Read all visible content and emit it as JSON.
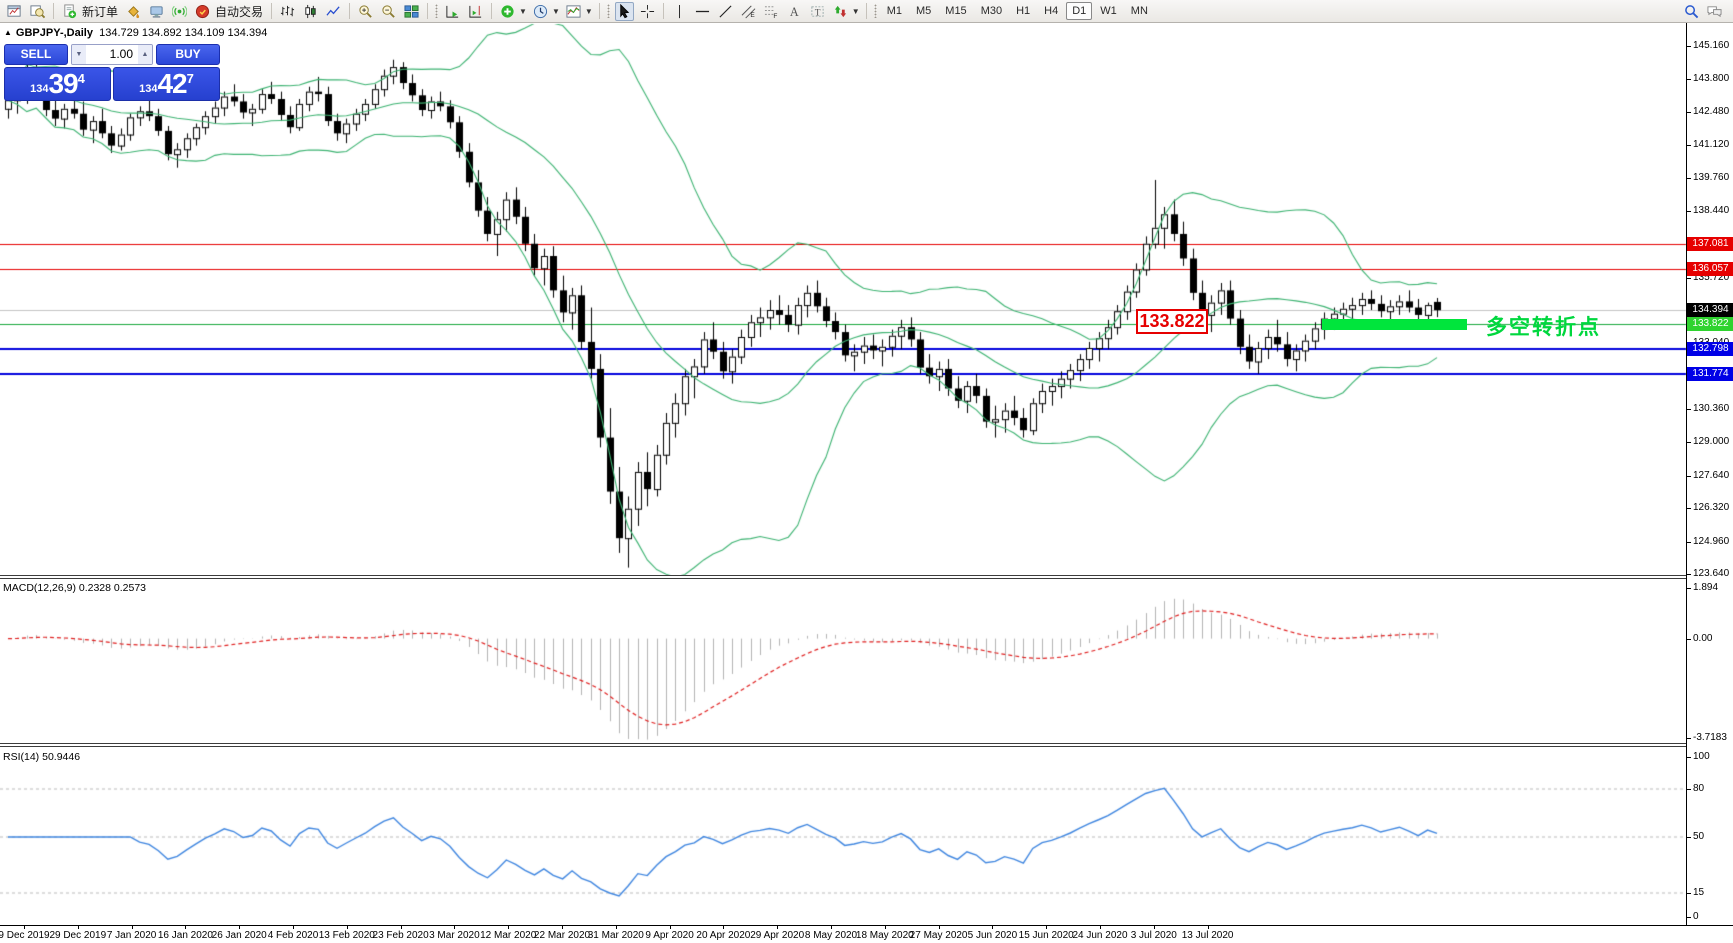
{
  "toolbar": {
    "new_order_label": "新订单",
    "autotrading_label": "自动交易",
    "timeframes": [
      "M1",
      "M5",
      "M15",
      "M30",
      "H1",
      "H4",
      "D1",
      "W1",
      "MN"
    ],
    "active_timeframe": "D1",
    "icon_names": [
      "new-chart",
      "profiles",
      "new-order",
      "styler",
      "experts",
      "signals",
      "autotrading",
      "bar-chart",
      "candlestick-chart",
      "line-chart",
      "zoom-in",
      "zoom-out",
      "tile-windows",
      "auto-scroll",
      "chart-shift",
      "indicators",
      "periods",
      "templates",
      "cursor",
      "crosshair",
      "vertical-line",
      "horizontal-line",
      "trendline",
      "equidistant-channel",
      "fibonacci",
      "text",
      "text-label",
      "arrows",
      "search",
      "chat"
    ]
  },
  "chart": {
    "symbol_period": "GBPJPY-,Daily",
    "ohlc": "134.729 134.892 134.109 134.394"
  },
  "one_click": {
    "sell_label": "SELL",
    "buy_label": "BUY",
    "volume": "1.00",
    "sell_prefix": "134",
    "sell_big": "39",
    "sell_sup": "4",
    "buy_prefix": "134",
    "buy_big": "42",
    "buy_sup": "7"
  },
  "annotations": {
    "price_flag": "133.822",
    "turning_point": "多空转折点",
    "flag_color": "#e60000",
    "turning_point_color": "#00d73e",
    "zone_bar_color": "#00e53c"
  },
  "macd_panel": {
    "name": "MACD(12,26,9)",
    "values": "0.2328 0.2573"
  },
  "rsi_panel": {
    "name": "RSI(14)",
    "value": "50.9446"
  },
  "chart_data": {
    "type": "candlestick",
    "symbol": "GBPJPY-",
    "period": "Daily",
    "price_axis": {
      "max": 145.16,
      "min": 123.64,
      "plain_ticks": [
        {
          "t": "145.160",
          "v": 145.16
        },
        {
          "t": "143.800",
          "v": 143.8
        },
        {
          "t": "142.480",
          "v": 142.48
        },
        {
          "t": "141.120",
          "v": 141.12
        },
        {
          "t": "139.760",
          "v": 139.76
        },
        {
          "t": "138.440",
          "v": 138.44
        },
        {
          "t": "135.720",
          "v": 135.72
        },
        {
          "t": "133.040",
          "v": 133.04
        },
        {
          "t": "130.360",
          "v": 130.36
        },
        {
          "t": "129.000",
          "v": 129.0
        },
        {
          "t": "127.640",
          "v": 127.64
        },
        {
          "t": "126.320",
          "v": 126.32
        },
        {
          "t": "124.960",
          "v": 124.96
        },
        {
          "t": "123.640",
          "v": 123.64
        }
      ],
      "tagged_labels": [
        {
          "t": "137.081",
          "v": 137.081,
          "bg": "#e60000"
        },
        {
          "t": "136.057",
          "v": 136.057,
          "bg": "#e60000"
        },
        {
          "t": "134.394",
          "v": 134.394,
          "bg": "#000000"
        },
        {
          "t": "133.822",
          "v": 133.822,
          "bg": "#2fd32f"
        },
        {
          "t": "132.798",
          "v": 132.798,
          "bg": "#0000e6"
        },
        {
          "t": "131.774",
          "v": 131.774,
          "bg": "#0000e6"
        }
      ]
    },
    "levels": [
      {
        "price": 137.081,
        "color": "#e60000",
        "lw": 1
      },
      {
        "price": 136.057,
        "color": "#e60000",
        "lw": 1
      },
      {
        "price": 134.394,
        "color": "#c4c4c4",
        "lw": 1
      },
      {
        "price": 133.822,
        "color": "#18a83c",
        "lw": 1
      },
      {
        "price": 132.798,
        "color": "#0000dd",
        "lw": 2
      },
      {
        "price": 131.774,
        "color": "#0000dd",
        "lw": 2
      }
    ],
    "macd_axis": {
      "labels": [
        {
          "t": "1.894",
          "v": 1.894
        },
        {
          "t": "0.00",
          "v": 0
        },
        {
          "t": "-3.7183",
          "v": -3.7183
        }
      ],
      "max": 1.894,
      "min": -3.7183
    },
    "rsi_axis": {
      "labels": [
        {
          "t": "100",
          "v": 100
        },
        {
          "t": "80",
          "v": 80
        },
        {
          "t": "50",
          "v": 50
        },
        {
          "t": "15",
          "v": 15
        },
        {
          "t": "0",
          "v": 0
        }
      ],
      "levels": [
        80,
        50,
        15
      ]
    },
    "indicators": {
      "bollinger": {
        "period": 20,
        "deviation": 2,
        "color": "#3CB371"
      },
      "macd": {
        "fast": 12,
        "slow": 26,
        "signal": 9,
        "hist_color": "#b4b4b4",
        "signal_color": "#e02020"
      },
      "rsi": {
        "period": 14,
        "color": "#3f86e0"
      }
    },
    "dates": [
      "9 Dec 2019",
      "29 Dec 2019",
      "7 Jan 2020",
      "16 Jan 2020",
      "26 Jan 2020",
      "4 Feb 2020",
      "13 Feb 2020",
      "23 Feb 2020",
      "3 Mar 2020",
      "12 Mar 2020",
      "22 Mar 2020",
      "31 Mar 2020",
      "9 Apr 2020",
      "20 Apr 2020",
      "29 Apr 2020",
      "8 May 2020",
      "18 May 2020",
      "27 May 2020",
      "5 Jun 2020",
      "15 Jun 2020",
      "24 Jun 2020",
      "3 Jul 2020",
      "13 Jul 2020"
    ],
    "candles": [
      [
        142.6,
        143.1,
        142.2,
        142.95
      ],
      [
        142.95,
        143.6,
        142.4,
        143.3
      ],
      [
        143.3,
        144.4,
        142.8,
        144.1
      ],
      [
        144.1,
        144.5,
        143.2,
        143.5
      ],
      [
        143.5,
        143.8,
        142.3,
        142.55
      ],
      [
        142.55,
        143.0,
        141.9,
        142.2
      ],
      [
        142.2,
        142.8,
        141.8,
        142.6
      ],
      [
        142.6,
        143.1,
        142.2,
        142.4
      ],
      [
        142.4,
        142.9,
        141.5,
        141.75
      ],
      [
        141.75,
        142.3,
        141.2,
        142.1
      ],
      [
        142.1,
        142.6,
        141.4,
        141.6
      ],
      [
        141.6,
        141.9,
        140.8,
        141.1
      ],
      [
        141.1,
        141.8,
        140.9,
        141.55
      ],
      [
        141.55,
        142.4,
        141.3,
        142.25
      ],
      [
        142.25,
        142.7,
        141.9,
        142.5
      ],
      [
        142.5,
        143.0,
        142.1,
        142.3
      ],
      [
        142.3,
        142.6,
        141.5,
        141.7
      ],
      [
        141.7,
        141.9,
        140.5,
        140.75
      ],
      [
        140.75,
        141.2,
        140.2,
        140.95
      ],
      [
        140.95,
        141.6,
        140.6,
        141.4
      ],
      [
        141.4,
        142.0,
        141.1,
        141.85
      ],
      [
        141.85,
        142.5,
        141.55,
        142.3
      ],
      [
        142.3,
        142.9,
        142.0,
        142.65
      ],
      [
        142.65,
        143.3,
        142.3,
        143.1
      ],
      [
        143.1,
        143.6,
        142.7,
        142.9
      ],
      [
        142.9,
        143.2,
        142.2,
        142.45
      ],
      [
        142.45,
        142.8,
        141.9,
        142.6
      ],
      [
        142.6,
        143.4,
        142.4,
        143.2
      ],
      [
        143.2,
        143.7,
        142.8,
        143.0
      ],
      [
        143.0,
        143.3,
        142.1,
        142.35
      ],
      [
        142.35,
        142.7,
        141.6,
        141.85
      ],
      [
        141.85,
        143.0,
        141.7,
        142.8
      ],
      [
        142.8,
        143.5,
        142.5,
        143.3
      ],
      [
        143.3,
        143.9,
        142.9,
        143.2
      ],
      [
        143.2,
        143.5,
        141.9,
        142.1
      ],
      [
        142.1,
        142.4,
        141.3,
        141.6
      ],
      [
        141.6,
        142.2,
        141.2,
        142.0
      ],
      [
        142.0,
        142.6,
        141.7,
        142.4
      ],
      [
        142.4,
        143.0,
        142.1,
        142.8
      ],
      [
        142.8,
        143.6,
        142.6,
        143.4
      ],
      [
        143.4,
        144.2,
        143.1,
        143.95
      ],
      [
        143.95,
        144.6,
        143.6,
        144.3
      ],
      [
        144.3,
        144.5,
        143.4,
        143.65
      ],
      [
        143.65,
        144.0,
        142.9,
        143.15
      ],
      [
        143.15,
        143.4,
        142.3,
        142.55
      ],
      [
        142.55,
        143.1,
        142.2,
        142.9
      ],
      [
        142.9,
        143.3,
        142.5,
        142.7
      ],
      [
        142.7,
        142.95,
        141.8,
        142.05
      ],
      [
        142.05,
        142.3,
        140.6,
        140.85
      ],
      [
        140.85,
        141.2,
        139.4,
        139.6
      ],
      [
        139.6,
        140.1,
        138.2,
        138.45
      ],
      [
        138.45,
        139.0,
        137.2,
        137.5
      ],
      [
        137.5,
        138.4,
        136.6,
        138.1
      ],
      [
        138.1,
        139.2,
        137.6,
        138.9
      ],
      [
        138.9,
        139.4,
        137.9,
        138.2
      ],
      [
        138.2,
        138.6,
        136.8,
        137.1
      ],
      [
        137.1,
        137.5,
        135.8,
        136.1
      ],
      [
        136.1,
        136.9,
        135.4,
        136.6
      ],
      [
        136.6,
        137.0,
        134.9,
        135.2
      ],
      [
        135.2,
        135.8,
        133.9,
        134.3
      ],
      [
        134.3,
        135.3,
        133.6,
        135.0
      ],
      [
        135.0,
        135.4,
        132.8,
        133.1
      ],
      [
        133.1,
        134.5,
        131.6,
        132.0
      ],
      [
        132.0,
        132.6,
        128.8,
        129.2
      ],
      [
        129.2,
        130.4,
        126.5,
        127.0
      ],
      [
        127.0,
        128.0,
        124.5,
        125.1
      ],
      [
        125.1,
        126.8,
        123.9,
        126.3
      ],
      [
        126.3,
        128.2,
        125.6,
        127.8
      ],
      [
        127.8,
        128.6,
        126.4,
        127.1
      ],
      [
        127.1,
        128.9,
        126.8,
        128.5
      ],
      [
        128.5,
        130.2,
        128.1,
        129.8
      ],
      [
        129.8,
        131.0,
        129.2,
        130.6
      ],
      [
        130.6,
        132.0,
        130.1,
        131.7
      ],
      [
        131.7,
        132.4,
        130.8,
        132.1
      ],
      [
        132.1,
        133.5,
        131.8,
        133.2
      ],
      [
        133.2,
        133.9,
        132.4,
        132.7
      ],
      [
        132.7,
        133.1,
        131.6,
        131.9
      ],
      [
        131.9,
        132.8,
        131.4,
        132.5
      ],
      [
        132.5,
        133.6,
        132.2,
        133.3
      ],
      [
        133.3,
        134.2,
        132.9,
        133.9
      ],
      [
        133.9,
        134.5,
        133.3,
        134.1
      ],
      [
        134.1,
        134.8,
        133.6,
        134.4
      ],
      [
        134.4,
        135.0,
        133.8,
        134.2
      ],
      [
        134.2,
        134.6,
        133.5,
        133.8
      ],
      [
        133.8,
        134.9,
        133.4,
        134.6
      ],
      [
        134.6,
        135.4,
        134.1,
        135.1
      ],
      [
        135.1,
        135.6,
        134.3,
        134.55
      ],
      [
        134.55,
        134.9,
        133.7,
        133.95
      ],
      [
        133.95,
        134.3,
        133.2,
        133.5
      ],
      [
        133.5,
        133.8,
        132.3,
        132.55
      ],
      [
        132.55,
        133.0,
        131.9,
        132.7
      ],
      [
        132.7,
        133.3,
        132.2,
        132.95
      ],
      [
        132.95,
        133.4,
        132.4,
        132.75
      ],
      [
        132.75,
        133.2,
        132.1,
        132.9
      ],
      [
        132.9,
        133.6,
        132.5,
        133.35
      ],
      [
        133.35,
        134.0,
        132.8,
        133.7
      ],
      [
        133.7,
        134.1,
        132.9,
        133.2
      ],
      [
        133.2,
        133.5,
        131.8,
        132.05
      ],
      [
        132.05,
        132.6,
        131.4,
        131.7
      ],
      [
        131.7,
        132.3,
        131.1,
        132.0
      ],
      [
        132.0,
        132.4,
        130.9,
        131.2
      ],
      [
        131.2,
        131.7,
        130.4,
        130.7
      ],
      [
        130.7,
        131.5,
        130.2,
        131.3
      ],
      [
        131.3,
        131.8,
        130.6,
        130.9
      ],
      [
        130.9,
        131.2,
        129.6,
        129.85
      ],
      [
        129.85,
        130.5,
        129.2,
        129.95
      ],
      [
        129.95,
        130.6,
        129.4,
        130.3
      ],
      [
        130.3,
        130.9,
        129.7,
        130.0
      ],
      [
        130.0,
        130.4,
        129.2,
        129.5
      ],
      [
        129.5,
        130.8,
        129.3,
        130.6
      ],
      [
        130.6,
        131.4,
        130.2,
        131.1
      ],
      [
        131.1,
        131.6,
        130.5,
        131.3
      ],
      [
        131.3,
        131.9,
        130.8,
        131.6
      ],
      [
        131.6,
        132.2,
        131.2,
        131.95
      ],
      [
        131.95,
        132.6,
        131.5,
        132.4
      ],
      [
        132.4,
        133.1,
        132.0,
        132.85
      ],
      [
        132.85,
        133.5,
        132.3,
        133.25
      ],
      [
        133.25,
        134.0,
        132.8,
        133.7
      ],
      [
        133.7,
        134.6,
        133.4,
        134.35
      ],
      [
        134.35,
        135.4,
        134.0,
        135.15
      ],
      [
        135.15,
        136.3,
        134.9,
        136.05
      ],
      [
        136.05,
        137.4,
        135.8,
        137.1
      ],
      [
        137.1,
        139.7,
        136.9,
        137.75
      ],
      [
        137.75,
        138.6,
        136.9,
        138.3
      ],
      [
        138.3,
        138.9,
        137.2,
        137.5
      ],
      [
        137.5,
        138.0,
        136.2,
        136.5
      ],
      [
        136.5,
        136.9,
        134.8,
        135.1
      ],
      [
        135.1,
        135.6,
        133.9,
        134.2
      ],
      [
        134.2,
        135.0,
        133.5,
        134.7
      ],
      [
        134.7,
        135.5,
        134.2,
        135.2
      ],
      [
        135.2,
        135.6,
        133.8,
        134.05
      ],
      [
        134.05,
        134.4,
        132.6,
        132.9
      ],
      [
        132.9,
        133.4,
        132.0,
        132.3
      ],
      [
        132.3,
        133.1,
        131.8,
        132.85
      ],
      [
        132.85,
        133.6,
        132.4,
        133.3
      ],
      [
        133.3,
        134.0,
        132.7,
        133.0
      ],
      [
        133.0,
        133.5,
        132.1,
        132.4
      ],
      [
        132.4,
        133.0,
        131.9,
        132.75
      ],
      [
        132.75,
        133.4,
        132.3,
        133.15
      ],
      [
        133.15,
        133.9,
        132.8,
        133.65
      ],
      [
        133.65,
        134.3,
        133.2,
        134.05
      ],
      [
        134.05,
        134.5,
        133.6,
        134.25
      ],
      [
        134.25,
        134.7,
        133.9,
        134.45
      ],
      [
        134.45,
        134.9,
        134.0,
        134.6
      ],
      [
        134.6,
        135.1,
        134.2,
        134.85
      ],
      [
        134.85,
        135.2,
        134.4,
        134.65
      ],
      [
        134.65,
        135.0,
        134.1,
        134.35
      ],
      [
        134.35,
        134.8,
        133.9,
        134.55
      ],
      [
        134.55,
        135.0,
        134.2,
        134.75
      ],
      [
        134.75,
        135.2,
        134.3,
        134.5
      ],
      [
        134.5,
        134.85,
        133.95,
        134.2
      ],
      [
        134.2,
        134.7,
        133.8,
        134.6
      ],
      [
        134.73,
        134.89,
        134.11,
        134.39
      ]
    ]
  }
}
